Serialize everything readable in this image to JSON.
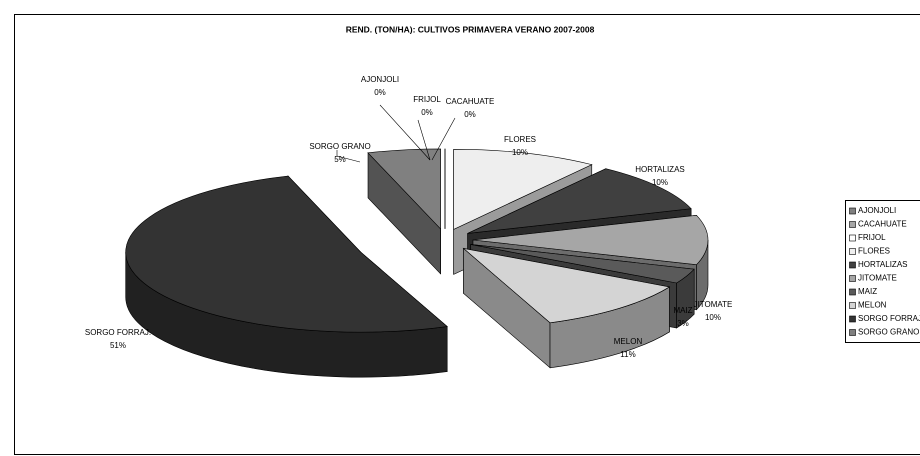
{
  "chart_data": {
    "type": "pie",
    "title": "REND. (TON/HA): CULTIVOS PRIMAVERA VERANO 2007-2008",
    "categories": [
      "AJONJOLI",
      "CACAHUATE",
      "FRIJOL",
      "FLORES",
      "HORTALIZAS",
      "JITOMATE",
      "MAIZ",
      "MELON",
      "SORGO FORRAJ.",
      "SORGO GRANO"
    ],
    "values": [
      0,
      0,
      0,
      10,
      10,
      10,
      3,
      11,
      51,
      5
    ],
    "value_labels": [
      "0%",
      "0%",
      "0%",
      "10%",
      "10%",
      "10%",
      "3%",
      "11%",
      "51%",
      "5%"
    ],
    "colors": [
      "#808080",
      "#a6a6a6",
      "#ffffff",
      "#eeeeee",
      "#404040",
      "#a6a6a6",
      "#5a5a5a",
      "#d4d4d4",
      "#333333",
      "#808080"
    ],
    "legend": "right"
  }
}
